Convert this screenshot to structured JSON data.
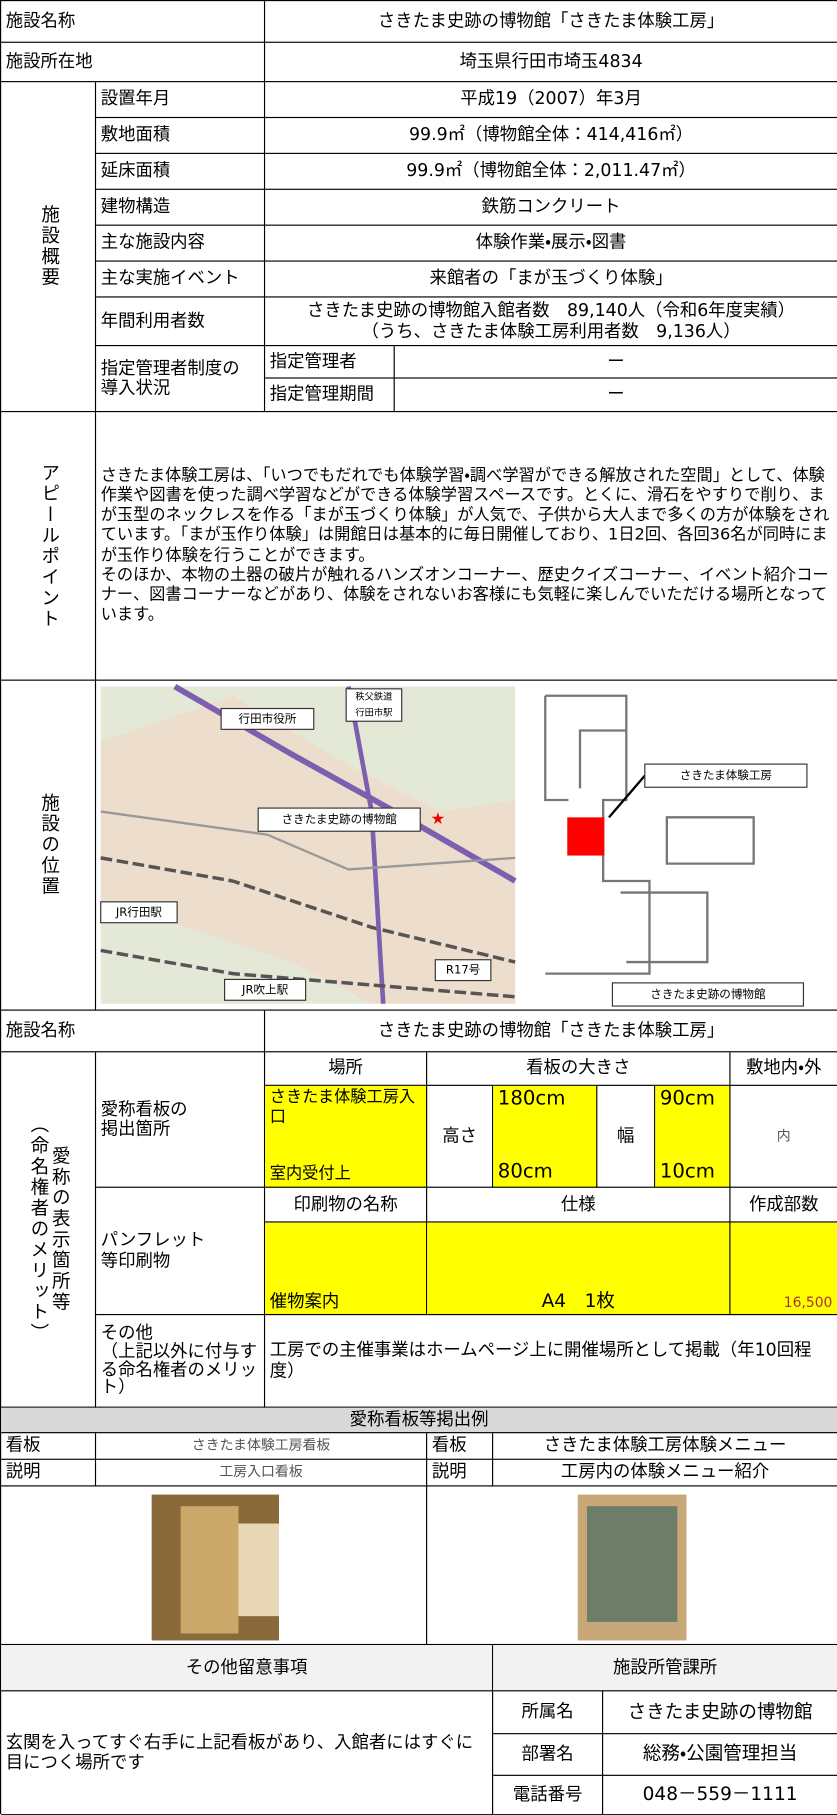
{
  "facility_name": {
    "label": "施設名称",
    "value": "さきたま史跡の博物館「さきたま体験工房」"
  },
  "location": {
    "label": "施設所在地",
    "value": "埼玉県行田市埼玉4834"
  },
  "overview": {
    "label": "施設概要",
    "rows": [
      [
        "設置年月",
        "平成19（2007）年3月"
      ],
      [
        "敷地面積",
        "99.9㎡（博物館全体：414,416㎡）"
      ],
      [
        "延床面積",
        "99.9㎡（博物館全体：2,011.47㎡）"
      ],
      [
        "建物構造",
        "鉄筋コンクリート"
      ],
      [
        "主な施設内容",
        "体験作業・展示・図書"
      ],
      [
        "主な実施イベント",
        "来館者の「まが玉づくり体験」"
      ]
    ],
    "annual_users": {
      "label": "年間利用者数",
      "lines": [
        "さきたま史跡の博物館入館者数　89,140人（令和6年度実績）",
        "（うち、さきたま体験工房利用者数　9,136人）"
      ]
    },
    "designated": {
      "label": "指定管理者制度の\n導入状況",
      "rows": [
        [
          "指定管理者",
          "ー"
        ],
        [
          "指定管理期間",
          "ー"
        ]
      ]
    }
  },
  "appeal": {
    "label": "アピールポイント",
    "text": "さきたま体験工房は、「いつでもだれでも体験学習・調べ学習ができる解放された空間」として、体験作業や図書を使った調べ学習などができる体験学習スペースです。とくに、滑石をやすりで削り、まが玉型のネックレスを作る「まが玉づくり体験」が人気で、子供から大人まで多くの方が体験をされています。「まが玉作り体験」は開館日は基本的に毎日開催しており、1日2回、各回36名が同時にまが玉作り体験を行うことができます。\nそのほか、本物の土器の破片が触れるハンズオンコーナー、歴史クイズコーナー、イベント紹介コーナー、図書コーナーなどがあり、体験をされないお客様にも気軽に楽しんでいただける場所となっています。"
  },
  "position": {
    "label": "施設の位置",
    "map_labels": [
      "行田市役所",
      [
        "秩父鉄道",
        "行田市駅"
      ],
      "さきたま史跡の博物館",
      "JR行田駅",
      "R17号",
      "JR吹上駅"
    ],
    "floor_labels": [
      "さきたま体験工房",
      "さきたま史跡の博物館"
    ]
  },
  "naming_facility": {
    "label": "施設名称",
    "value": "さきたま史跡の博物館「さきたま体験工房」"
  },
  "naming": {
    "label": "愛称の表示箇所等\n（命名権者のメリット）",
    "sign": {
      "label": "愛称看板の\n掲出箇所",
      "headers": [
        "場所",
        "看板の大きさ",
        "敷地内・外"
      ],
      "place": [
        "さきたま体験工房入口",
        "室内受付上"
      ],
      "height_label": "高さ",
      "heights": [
        "180cm",
        "80cm"
      ],
      "width_label": "幅",
      "widths": [
        "90cm",
        "10cm"
      ],
      "inside": "内"
    },
    "print": {
      "label": "パンフレット\n等印刷物",
      "headers": [
        "印刷物の名称",
        "仕様",
        "作成部数"
      ],
      "name": "催物案内",
      "spec": "A4　1枚",
      "copies": "16,500"
    },
    "other": {
      "label": "その他\n（上記以外に付与する命名権者のメリット）",
      "text": "工房での主催事業はホームページ上に開催場所として掲載（年10回程度）"
    }
  },
  "examples": {
    "title": "愛称看板等掲出例",
    "left": {
      "sign_label": "看板",
      "sign": "さきたま体験工房看板",
      "desc_label": "説明",
      "desc": "工房入口看板"
    },
    "right": {
      "sign_label": "看板",
      "sign": "さきたま体験工房体験メニュー",
      "desc_label": "説明",
      "desc": "工房内の体験メニュー紹介"
    }
  },
  "notes": {
    "label": "その他留意事項",
    "text": "玄関を入ってすぐ右手に上記看板があり、入館者にはすぐに目につく場所です"
  },
  "office": {
    "label": "施設所管課所",
    "rows": [
      [
        "所属名",
        "さきたま史跡の博物館"
      ],
      [
        "部署名",
        "総務・公園管理担当"
      ],
      [
        "電話番号",
        "048－559－1111"
      ]
    ]
  }
}
